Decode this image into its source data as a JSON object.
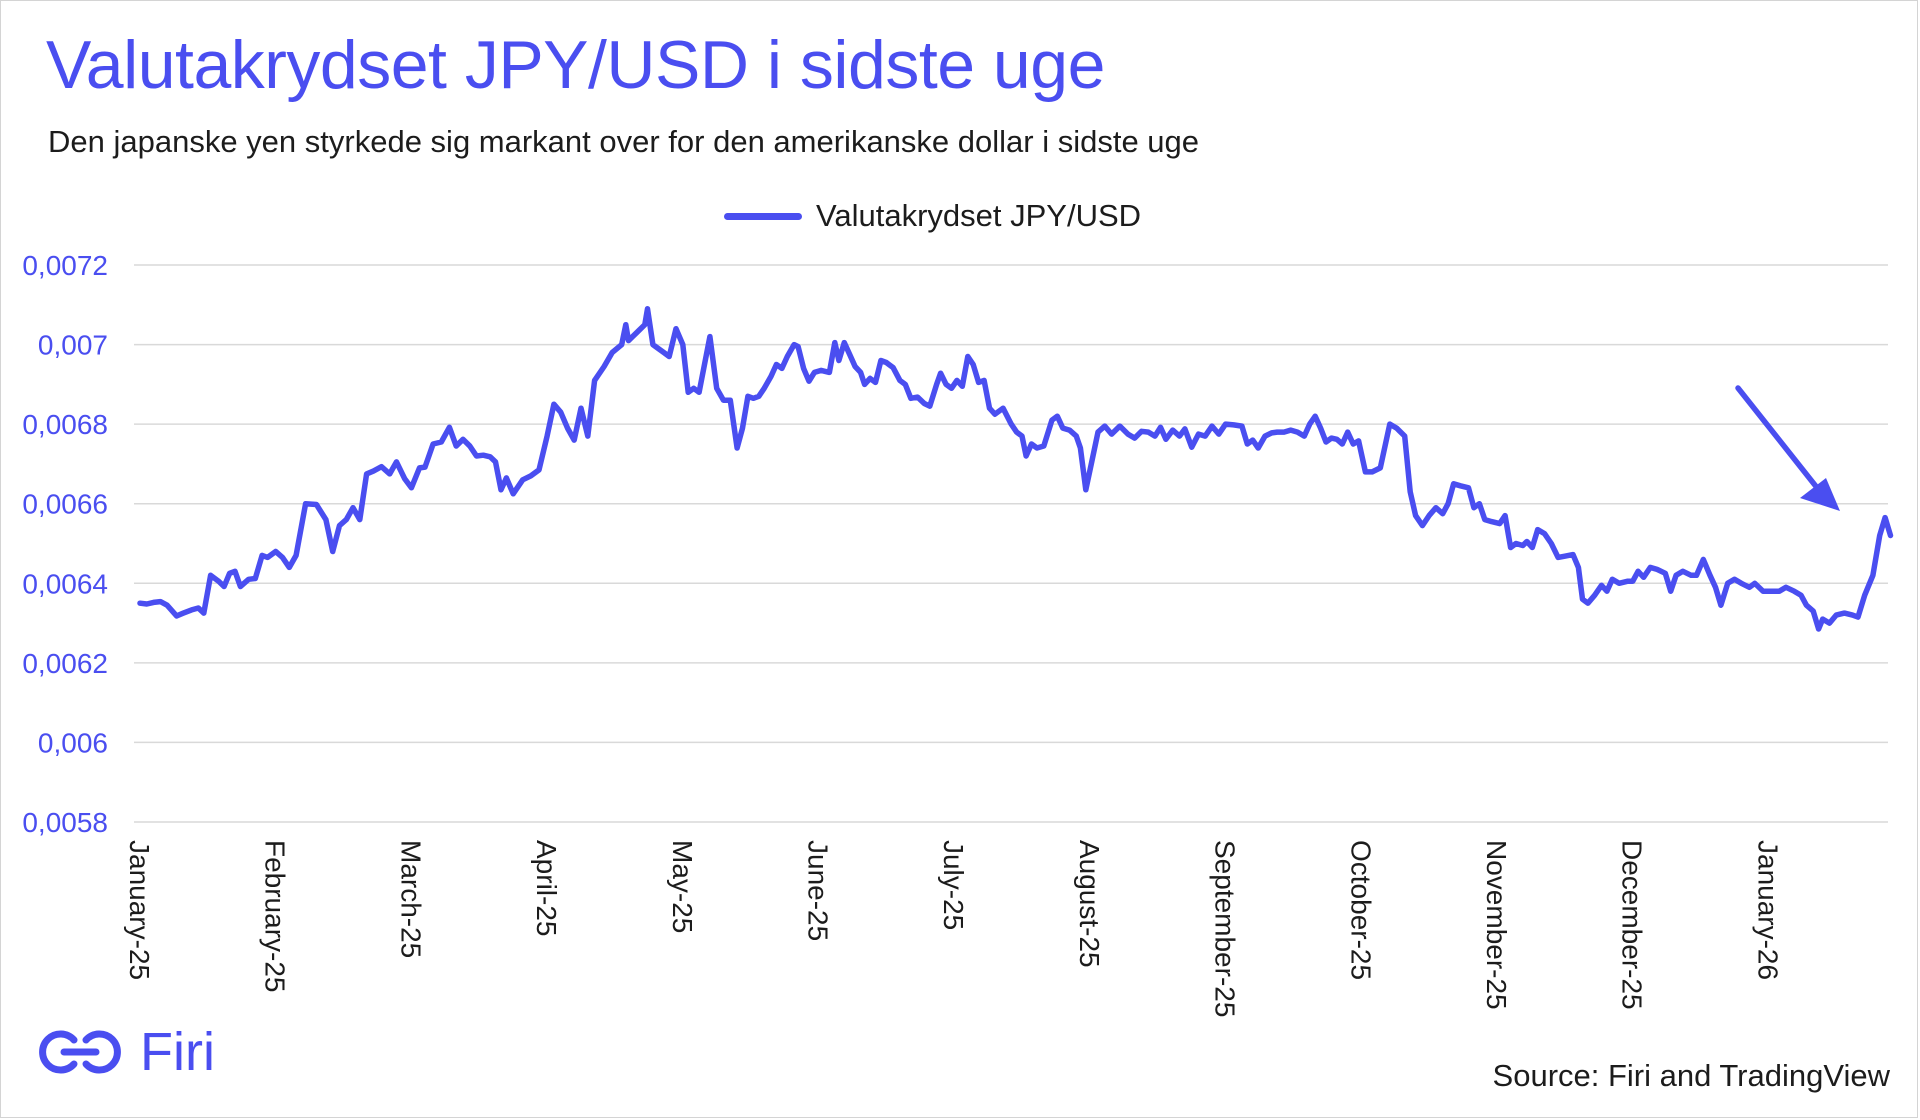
{
  "header": {
    "title": "Valutakrydset JPY/USD i sidste uge",
    "subtitle": "Den japanske yen styrkede sig markant over for den amerikanske dollar i sidste uge"
  },
  "footer": {
    "brand": "Firi",
    "source": "Source: Firi and TradingView"
  },
  "colors": {
    "accent": "#4a4ef0",
    "grid": "#d9d9d9",
    "text": "#1c1c1c"
  },
  "chart_data": {
    "type": "line",
    "title": "Valutakrydset JPY/USD i sidste uge",
    "subtitle": "Den japanske yen styrkede sig markant over for den amerikanske dollar i sidste uge",
    "xlabel": "",
    "ylabel": "",
    "legend": {
      "position": "top-center",
      "entries": [
        "Valutakrydset JPY/USD"
      ]
    },
    "grid": true,
    "ylim": [
      0.0058,
      0.0072
    ],
    "yticks": [
      0.0058,
      0.006,
      0.0062,
      0.0064,
      0.0066,
      0.0068,
      0.007,
      0.0072
    ],
    "ytick_labels": [
      "0,0058",
      "0,006",
      "0,0062",
      "0,0064",
      "0,0066",
      "0,0068",
      "0,007",
      "0,0072"
    ],
    "xlim_month_index": [
      0,
      12.95
    ],
    "x_labels": [
      "January-25",
      "February-25",
      "March-25",
      "April-25",
      "May-25",
      "June-25",
      "July-25",
      "August-25",
      "September-25",
      "October-25",
      "November-25",
      "December-25",
      "January-26"
    ],
    "annotation": {
      "type": "arrow",
      "description": "downward arrow pointing to the final jump"
    },
    "series": [
      {
        "name": "Valutakrydset JPY/USD",
        "points": [
          [
            0.0,
            0.00635
          ],
          [
            0.05,
            0.006348
          ],
          [
            0.1,
            0.006352
          ],
          [
            0.15,
            0.006354
          ],
          [
            0.2,
            0.006345
          ],
          [
            0.27,
            0.006318
          ],
          [
            0.32,
            0.006325
          ],
          [
            0.38,
            0.006333
          ],
          [
            0.43,
            0.006338
          ],
          [
            0.47,
            0.006325
          ],
          [
            0.52,
            0.00642
          ],
          [
            0.58,
            0.006405
          ],
          [
            0.62,
            0.006392
          ],
          [
            0.66,
            0.006425
          ],
          [
            0.7,
            0.00643
          ],
          [
            0.74,
            0.006392
          ],
          [
            0.8,
            0.00641
          ],
          [
            0.85,
            0.006412
          ],
          [
            0.9,
            0.00647
          ],
          [
            0.94,
            0.006465
          ],
          [
            1.0,
            0.00648
          ],
          [
            1.05,
            0.006465
          ],
          [
            1.1,
            0.00644
          ],
          [
            1.15,
            0.00647
          ],
          [
            1.22,
            0.0066
          ],
          [
            1.3,
            0.006598
          ],
          [
            1.37,
            0.00656
          ],
          [
            1.42,
            0.00648
          ],
          [
            1.47,
            0.006545
          ],
          [
            1.52,
            0.00656
          ],
          [
            1.57,
            0.00659
          ],
          [
            1.62,
            0.00656
          ],
          [
            1.67,
            0.006675
          ],
          [
            1.72,
            0.006682
          ],
          [
            1.78,
            0.006693
          ],
          [
            1.84,
            0.006675
          ],
          [
            1.89,
            0.006705
          ],
          [
            1.95,
            0.006663
          ],
          [
            2.0,
            0.00664
          ],
          [
            2.06,
            0.00669
          ],
          [
            2.1,
            0.006692
          ],
          [
            2.16,
            0.00675
          ],
          [
            2.22,
            0.006755
          ],
          [
            2.28,
            0.006792
          ],
          [
            2.33,
            0.006745
          ],
          [
            2.38,
            0.006762
          ],
          [
            2.43,
            0.006745
          ],
          [
            2.48,
            0.00672
          ],
          [
            2.53,
            0.006722
          ],
          [
            2.58,
            0.006718
          ],
          [
            2.62,
            0.006705
          ],
          [
            2.66,
            0.006635
          ],
          [
            2.7,
            0.006665
          ],
          [
            2.75,
            0.006625
          ],
          [
            2.82,
            0.00666
          ],
          [
            2.88,
            0.00667
          ],
          [
            2.94,
            0.006685
          ],
          [
            3.0,
            0.00677
          ],
          [
            3.05,
            0.00685
          ],
          [
            3.1,
            0.00683
          ],
          [
            3.15,
            0.00679
          ],
          [
            3.2,
            0.00676
          ],
          [
            3.25,
            0.00684
          ],
          [
            3.3,
            0.00677
          ],
          [
            3.35,
            0.00691
          ],
          [
            3.42,
            0.006945
          ],
          [
            3.48,
            0.00698
          ],
          [
            3.55,
            0.007
          ],
          [
            3.58,
            0.00705
          ],
          [
            3.6,
            0.00701
          ],
          [
            3.66,
            0.00703
          ],
          [
            3.72,
            0.00705
          ],
          [
            3.74,
            0.00709
          ],
          [
            3.78,
            0.007
          ],
          [
            3.82,
            0.00699
          ],
          [
            3.86,
            0.00698
          ],
          [
            3.9,
            0.00697
          ],
          [
            3.95,
            0.00704
          ],
          [
            4.0,
            0.007
          ],
          [
            4.04,
            0.00688
          ],
          [
            4.08,
            0.00689
          ],
          [
            4.12,
            0.00688
          ],
          [
            4.2,
            0.00702
          ],
          [
            4.25,
            0.00689
          ],
          [
            4.3,
            0.00686
          ],
          [
            4.35,
            0.00686
          ],
          [
            4.4,
            0.00674
          ],
          [
            4.44,
            0.00679
          ],
          [
            4.48,
            0.00687
          ],
          [
            4.52,
            0.006865
          ],
          [
            4.56,
            0.00687
          ],
          [
            4.6,
            0.00689
          ],
          [
            4.65,
            0.00692
          ],
          [
            4.69,
            0.00695
          ],
          [
            4.73,
            0.00694
          ],
          [
            4.77,
            0.00697
          ],
          [
            4.82,
            0.007
          ],
          [
            4.85,
            0.006995
          ],
          [
            4.89,
            0.00694
          ],
          [
            4.93,
            0.006908
          ],
          [
            4.97,
            0.00693
          ],
          [
            5.02,
            0.006935
          ],
          [
            5.08,
            0.00693
          ],
          [
            5.12,
            0.007005
          ],
          [
            5.15,
            0.00696
          ],
          [
            5.19,
            0.007005
          ],
          [
            5.23,
            0.006975
          ],
          [
            5.27,
            0.006945
          ],
          [
            5.31,
            0.00693
          ],
          [
            5.34,
            0.0069
          ],
          [
            5.38,
            0.006915
          ],
          [
            5.42,
            0.006905
          ],
          [
            5.46,
            0.00696
          ],
          [
            5.5,
            0.006955
          ],
          [
            5.55,
            0.006942
          ],
          [
            5.6,
            0.00691
          ],
          [
            5.64,
            0.0069
          ],
          [
            5.68,
            0.006865
          ],
          [
            5.73,
            0.006868
          ],
          [
            5.78,
            0.006852
          ],
          [
            5.82,
            0.006845
          ],
          [
            5.87,
            0.0069
          ],
          [
            5.9,
            0.006928
          ],
          [
            5.94,
            0.0069
          ],
          [
            5.98,
            0.00689
          ],
          [
            6.02,
            0.00691
          ],
          [
            6.06,
            0.006895
          ],
          [
            6.1,
            0.00697
          ],
          [
            6.14,
            0.00695
          ],
          [
            6.18,
            0.006905
          ],
          [
            6.22,
            0.00691
          ],
          [
            6.26,
            0.00684
          ],
          [
            6.3,
            0.006825
          ],
          [
            6.36,
            0.00684
          ],
          [
            6.42,
            0.0068
          ],
          [
            6.46,
            0.00678
          ],
          [
            6.5,
            0.00677
          ],
          [
            6.53,
            0.00672
          ],
          [
            6.57,
            0.00675
          ],
          [
            6.61,
            0.00674
          ],
          [
            6.66,
            0.006745
          ],
          [
            6.72,
            0.00681
          ],
          [
            6.76,
            0.00682
          ],
          [
            6.8,
            0.00679
          ],
          [
            6.85,
            0.006785
          ],
          [
            6.9,
            0.00677
          ],
          [
            6.93,
            0.00674
          ],
          [
            6.97,
            0.006635
          ],
          [
            7.01,
            0.0067
          ],
          [
            7.06,
            0.00678
          ],
          [
            7.11,
            0.006795
          ],
          [
            7.16,
            0.006775
          ],
          [
            7.22,
            0.006795
          ],
          [
            7.28,
            0.006775
          ],
          [
            7.33,
            0.006765
          ],
          [
            7.38,
            0.006782
          ],
          [
            7.43,
            0.00678
          ],
          [
            7.48,
            0.00677
          ],
          [
            7.52,
            0.006792
          ],
          [
            7.56,
            0.006762
          ],
          [
            7.61,
            0.006785
          ],
          [
            7.66,
            0.00677
          ],
          [
            7.7,
            0.006788
          ],
          [
            7.75,
            0.006742
          ],
          [
            7.8,
            0.006775
          ],
          [
            7.85,
            0.00677
          ],
          [
            7.9,
            0.006795
          ],
          [
            7.95,
            0.006775
          ],
          [
            8.0,
            0.0068
          ],
          [
            8.06,
            0.006798
          ],
          [
            8.12,
            0.006795
          ],
          [
            8.16,
            0.00675
          ],
          [
            8.2,
            0.00676
          ],
          [
            8.24,
            0.00674
          ],
          [
            8.29,
            0.00677
          ],
          [
            8.34,
            0.006778
          ],
          [
            8.38,
            0.00678
          ],
          [
            8.43,
            0.00678
          ],
          [
            8.48,
            0.006785
          ],
          [
            8.53,
            0.00678
          ],
          [
            8.58,
            0.00677
          ],
          [
            8.62,
            0.0068
          ],
          [
            8.66,
            0.00682
          ],
          [
            8.7,
            0.00679
          ],
          [
            8.74,
            0.006755
          ],
          [
            8.78,
            0.006765
          ],
          [
            8.82,
            0.006762
          ],
          [
            8.86,
            0.00675
          ],
          [
            8.9,
            0.00678
          ],
          [
            8.94,
            0.00675
          ],
          [
            8.98,
            0.006758
          ],
          [
            9.03,
            0.00668
          ],
          [
            9.08,
            0.00668
          ],
          [
            9.14,
            0.00669
          ],
          [
            9.21,
            0.0068
          ],
          [
            9.26,
            0.00679
          ],
          [
            9.32,
            0.00677
          ],
          [
            9.36,
            0.00663
          ],
          [
            9.4,
            0.00657
          ],
          [
            9.45,
            0.006545
          ],
          [
            9.5,
            0.00657
          ],
          [
            9.55,
            0.00659
          ],
          [
            9.6,
            0.006575
          ],
          [
            9.64,
            0.0066
          ],
          [
            9.68,
            0.00665
          ],
          [
            9.73,
            0.006645
          ],
          [
            9.79,
            0.00664
          ],
          [
            9.83,
            0.00659
          ],
          [
            9.87,
            0.0066
          ],
          [
            9.91,
            0.00656
          ],
          [
            9.96,
            0.006555
          ],
          [
            10.02,
            0.00655
          ],
          [
            10.06,
            0.00657
          ],
          [
            10.1,
            0.00649
          ],
          [
            10.14,
            0.0065
          ],
          [
            10.19,
            0.006495
          ],
          [
            10.22,
            0.006505
          ],
          [
            10.26,
            0.00649
          ],
          [
            10.3,
            0.006535
          ],
          [
            10.35,
            0.006525
          ],
          [
            10.4,
            0.0065
          ],
          [
            10.45,
            0.006465
          ],
          [
            10.5,
            0.006468
          ],
          [
            10.56,
            0.006472
          ],
          [
            10.6,
            0.00644
          ],
          [
            10.63,
            0.00636
          ],
          [
            10.67,
            0.00635
          ],
          [
            10.72,
            0.00637
          ],
          [
            10.77,
            0.006395
          ],
          [
            10.81,
            0.00638
          ],
          [
            10.85,
            0.00641
          ],
          [
            10.9,
            0.0064
          ],
          [
            10.96,
            0.006405
          ],
          [
            11.0,
            0.006405
          ],
          [
            11.04,
            0.00643
          ],
          [
            11.08,
            0.006415
          ],
          [
            11.13,
            0.00644
          ],
          [
            11.18,
            0.006435
          ],
          [
            11.24,
            0.006425
          ],
          [
            11.28,
            0.00638
          ],
          [
            11.32,
            0.00642
          ],
          [
            11.37,
            0.00643
          ],
          [
            11.43,
            0.00642
          ],
          [
            11.47,
            0.00642
          ],
          [
            11.52,
            0.00646
          ],
          [
            11.57,
            0.00642
          ],
          [
            11.61,
            0.00639
          ],
          [
            11.65,
            0.006345
          ],
          [
            11.7,
            0.0064
          ],
          [
            11.75,
            0.00641
          ],
          [
            11.8,
            0.0064
          ],
          [
            11.86,
            0.00639
          ],
          [
            11.9,
            0.0064
          ],
          [
            11.96,
            0.00638
          ],
          [
            12.02,
            0.00638
          ],
          [
            12.08,
            0.00638
          ],
          [
            12.13,
            0.00639
          ],
          [
            12.19,
            0.00638
          ],
          [
            12.24,
            0.00637
          ],
          [
            12.28,
            0.006345
          ],
          [
            12.33,
            0.00633
          ],
          [
            12.37,
            0.006285
          ],
          [
            12.4,
            0.00631
          ],
          [
            12.45,
            0.0063
          ],
          [
            12.5,
            0.00632
          ],
          [
            12.56,
            0.006325
          ],
          [
            12.62,
            0.00632
          ],
          [
            12.66,
            0.006315
          ],
          [
            12.71,
            0.00637
          ],
          [
            12.77,
            0.00642
          ],
          [
            12.82,
            0.00652
          ],
          [
            12.86,
            0.006565
          ],
          [
            12.9,
            0.00652
          ]
        ]
      }
    ]
  }
}
